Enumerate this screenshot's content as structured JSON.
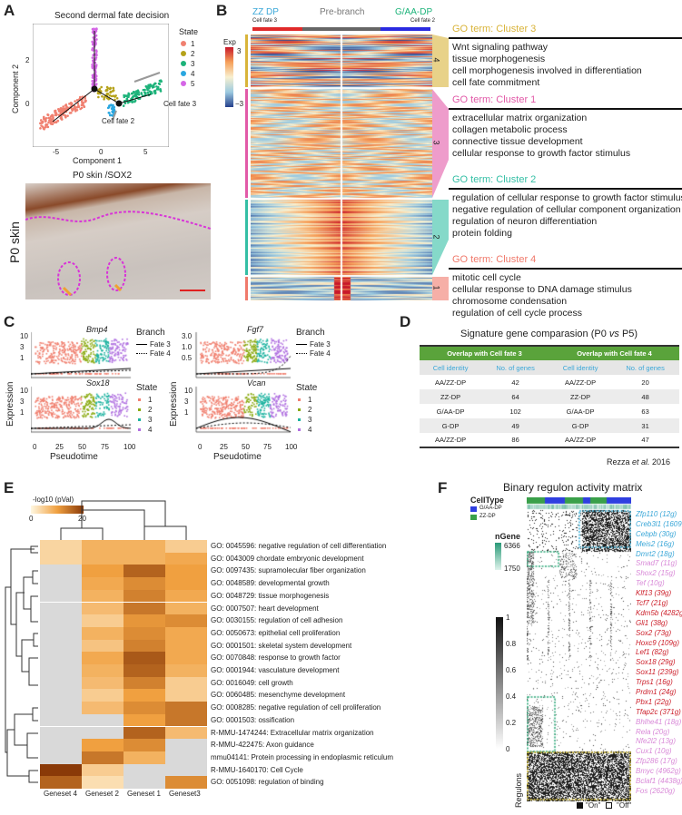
{
  "panelA": {
    "label": "A",
    "title": "Second dermal fate decision",
    "xlabel": "Component 1",
    "ylabel": "Component 2",
    "xticks": [
      "-5",
      "0",
      "5"
    ],
    "yticks": [
      "2",
      "0"
    ],
    "legend_title": "State",
    "states": [
      "1",
      "2",
      "3",
      "4",
      "5"
    ],
    "state_colors": [
      "#f08070",
      "#b5a21a",
      "#1db37a",
      "#2aa7e0",
      "#d566e6"
    ],
    "annotations": [
      "Cell fate 3",
      "Cell fate 2",
      "1",
      "2"
    ],
    "image_title": "P0 skin /SOX2",
    "image_side_label": "P0 skin"
  },
  "panelB": {
    "label": "B",
    "left_title": "ZZ DP",
    "left_sub": "Cell fate 3",
    "mid_title": "Pre-branch",
    "right_title": "G/AA-DP",
    "right_sub": "Cell fate 2",
    "colorbar_title": "Exp",
    "colorbar_max": "3",
    "colorbar_min": "−3",
    "clusters": [
      {
        "num": "4",
        "color": "#d9b43a",
        "head": "GO term: Cluster 3",
        "items": [
          "Wnt signaling pathway",
          "tissue morphogenesis",
          "cell morphogenesis involved in differentiation",
          "cell fate commitment"
        ]
      },
      {
        "num": "3",
        "color": "#e25aa8",
        "head": "GO term: Cluster 1",
        "items": [
          "extracellular matrix organization",
          "collagen metabolic process",
          "connective tissue development",
          "cellular response to growth factor stimulus"
        ]
      },
      {
        "num": "2",
        "color": "#34bfa5",
        "head": "GO term: Cluster 2",
        "items": [
          "regulation of cellular response to growth factor stimulus",
          "negative regulation of cellular component organization",
          "regulation of neuron differentiation",
          "protein folding"
        ]
      },
      {
        "num": "1",
        "color": "#f07a6c",
        "head": "GO term: Cluster 4",
        "items": [
          "mitotic cell cycle",
          "cellular response to DNA damage stimulus",
          "chromosome condensation",
          "regulation of cell cycle process"
        ]
      }
    ]
  },
  "panelC": {
    "label": "C",
    "ylabel": "Expression",
    "xlabel": "Pseudotime",
    "xticks": [
      "0",
      "25",
      "50",
      "75",
      "100"
    ],
    "genes": [
      "Bmp4",
      "Sox18",
      "Fgf7",
      "Vcan"
    ],
    "yticks_left_top": [
      "10",
      "3",
      "1"
    ],
    "yticks_left_bot": [
      "10",
      "3",
      "1"
    ],
    "yticks_right_top": [
      "3.0",
      "1.0",
      "0.5"
    ],
    "yticks_right_bot": [
      "10",
      "3",
      "1"
    ],
    "branch_title": "Branch",
    "branches": [
      "Fate 3",
      "Fate 4"
    ],
    "state_title": "State",
    "states": [
      "1",
      "2",
      "3",
      "4"
    ]
  },
  "panelD": {
    "label": "D",
    "title_pre": "Signature gene comparasion (P0 ",
    "title_vs": "vs",
    "title_post": " P5)",
    "head1": "Overlap with Cell fate 3",
    "head2": "Overlap with Cell fate 4",
    "sub": [
      "Cell identity",
      "No. of genes",
      "Cell identity",
      "No. of genes"
    ],
    "rows": [
      [
        "AA/ZZ-DP",
        "42",
        "AA/ZZ-DP",
        "20"
      ],
      [
        "ZZ-DP",
        "64",
        "ZZ-DP",
        "48"
      ],
      [
        "G/AA-DP",
        "102",
        "G/AA-DP",
        "63"
      ],
      [
        "G-DP",
        "49",
        "G-DP",
        "31"
      ],
      [
        "AA/ZZ-DP",
        "86",
        "AA/ZZ-DP",
        "47"
      ]
    ],
    "cite_a": "Rezza ",
    "cite_b": "et al.",
    "cite_c": " 2016"
  },
  "chart_data": {
    "type": "heatmap",
    "title": "-log10 (pVal)",
    "scale_ticks": [
      "0",
      "20"
    ],
    "scale_range": [
      0,
      20
    ],
    "columns": [
      "Geneset 4",
      "Geneset 2",
      "Geneset 1",
      "Geneset3"
    ],
    "rows": [
      "GO: 0045596: negative regulation of cell differentiation",
      "GO: 0043009 chordate embryonic development",
      "GO: 0097435: supramolecular fiber organization",
      "GO: 0048589: developmental growth",
      "GO: 0048729: tissue morphogenesis",
      "GO: 0007507: heart development",
      "GO: 0030155: regulation of cell adhesion",
      "GO: 0050673: epithelial cell proliferation",
      "GO: 0001501: skeletal system development",
      "GO: 0070848: response to growth factor",
      "GO: 0001944: vasculature development",
      "GO: 0016049: cell growth",
      "GO: 0060485: mesenchyme development",
      "GO: 0008285: negative regulation of cell proliferation",
      "GO: 0001503: ossification",
      "R-MMU-1474244: Extracellular matrix organization",
      "R-MMU-422475: Axon guidance",
      "mmu04141: Protein processing in endoplasmic reticulum",
      "R-MMU-1640170: Cell Cycle",
      "GO: 0051098: regulation of binding"
    ],
    "values": [
      [
        4,
        8,
        8,
        5
      ],
      [
        4,
        8,
        8,
        9
      ],
      [
        null,
        10,
        16,
        10
      ],
      [
        null,
        9,
        12,
        10
      ],
      [
        null,
        8,
        13,
        9
      ],
      [
        null,
        7,
        14,
        8
      ],
      [
        null,
        5,
        11,
        12
      ],
      [
        null,
        8,
        12,
        9
      ],
      [
        null,
        6,
        13,
        9
      ],
      [
        null,
        9,
        17,
        9
      ],
      [
        null,
        8,
        16,
        8
      ],
      [
        null,
        7,
        13,
        5
      ],
      [
        null,
        5,
        10,
        5
      ],
      [
        null,
        7,
        12,
        14
      ],
      [
        null,
        null,
        10,
        14
      ],
      [
        null,
        null,
        16,
        7
      ],
      [
        null,
        10,
        12,
        null
      ],
      [
        null,
        14,
        8,
        null
      ],
      [
        20,
        5,
        null,
        null
      ],
      [
        16,
        3,
        null,
        12
      ]
    ],
    "low_color": "#fff8e2",
    "high_color": "#8a3a08",
    "na_color": "#d9d9d9"
  },
  "panelE": {
    "label": "E"
  },
  "panelF": {
    "label": "F",
    "title": "Binary regulon activity matrix",
    "celltype_title": "CellType",
    "celltypes": [
      "G/AA-DP",
      "ZZ-DP"
    ],
    "celltype_colors": [
      "#2f3fe0",
      "#3aa04a"
    ],
    "ngene_title": "nGene",
    "ngene_max": "6366",
    "ngene_min": "1750",
    "scale_ticks": [
      "1",
      "0.8",
      "0.6",
      "0.4",
      "0.2",
      "0"
    ],
    "regulons_label": "Regulons",
    "on_label": "\"On\"",
    "off_label": "\"Off\"",
    "regulons": [
      {
        "name": "Zfp110 (12g)",
        "c": "#3aa7d8"
      },
      {
        "name": "Creb3l1 (1609g)",
        "c": "#3aa7d8"
      },
      {
        "name": "Cebpb (30g)",
        "c": "#3aa7d8"
      },
      {
        "name": "Meis2 (16g)",
        "c": "#3aa7d8"
      },
      {
        "name": "Dmrt2 (18g)",
        "c": "#3aa7d8"
      },
      {
        "name": "Smad7 (11g)",
        "c": "#d98ad8"
      },
      {
        "name": "Shox2 (15g)",
        "c": "#d98ad8"
      },
      {
        "name": "Tef (10g)",
        "c": "#d98ad8"
      },
      {
        "name": "Klf13 (39g)",
        "c": "#cc1f2a"
      },
      {
        "name": "Tcf7 (21g)",
        "c": "#cc1f2a"
      },
      {
        "name": "Kdm5b (4282g)",
        "c": "#cc1f2a"
      },
      {
        "name": "Gli1 (38g)",
        "c": "#cc1f2a"
      },
      {
        "name": "Sox2 (73g)",
        "c": "#cc1f2a"
      },
      {
        "name": "Hoxc9 (109g)",
        "c": "#cc1f2a"
      },
      {
        "name": "Lef1 (82g)",
        "c": "#cc1f2a"
      },
      {
        "name": "Sox18 (29g)",
        "c": "#cc1f2a"
      },
      {
        "name": "Sox11 (239g)",
        "c": "#cc1f2a"
      },
      {
        "name": "Trps1 (16g)",
        "c": "#cc1f2a"
      },
      {
        "name": "Prdm1 (24g)",
        "c": "#cc1f2a"
      },
      {
        "name": "Pbx1 (22g)",
        "c": "#cc1f2a"
      },
      {
        "name": "Tfap2c (371g)",
        "c": "#cc1f2a"
      },
      {
        "name": "Bhlhe41 (18g)",
        "c": "#d98ad8"
      },
      {
        "name": "Rela (20g)",
        "c": "#d98ad8"
      },
      {
        "name": "Nfe2l2 (13g)",
        "c": "#d98ad8"
      },
      {
        "name": "Cux1 (10g)",
        "c": "#d98ad8"
      },
      {
        "name": "Zfp286 (17g)",
        "c": "#d98ad8"
      },
      {
        "name": "Bmyc (4962g)",
        "c": "#d98ad8"
      },
      {
        "name": "Bclaf1 (4438g)",
        "c": "#d98ad8"
      },
      {
        "name": "Fos (2620g)",
        "c": "#d98ad8"
      }
    ]
  }
}
